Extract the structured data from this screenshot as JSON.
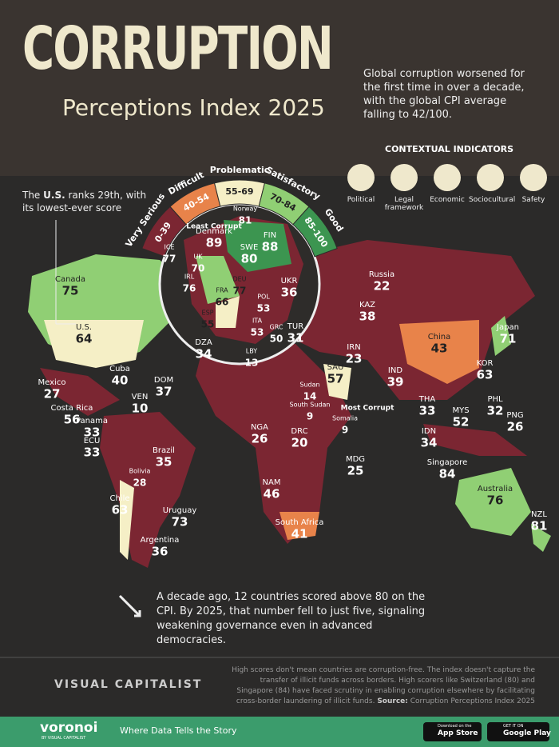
{
  "header": {
    "title": "CORRUPTION",
    "subtitle": "Perceptions Index 2025",
    "intro": "Global corruption worsened for the first time in over a decade, with the global CPI average falling to 42/100."
  },
  "indicators": {
    "title": "CONTEXTUAL INDICATORS",
    "items": [
      "Political",
      "Legal framework",
      "Economic",
      "Sociocultural",
      "Safety"
    ]
  },
  "legend": [
    {
      "name": "Very Serious",
      "range": "0-39",
      "color": "#7b2632"
    },
    {
      "name": "Difficult",
      "range": "40-54",
      "color": "#e8834a"
    },
    {
      "name": "Problematic",
      "range": "55-69",
      "color": "#f5efc6"
    },
    {
      "name": "Satisfactory",
      "range": "70-84",
      "color": "#90cf74"
    },
    {
      "name": "Good",
      "range": "85-100",
      "color": "#3c9550"
    }
  ],
  "us_note": {
    "before": "The",
    "bold": "U.S.",
    "after": "ranks 29th, with its lowest-ever score"
  },
  "annotations": {
    "least": "Least Corrupt",
    "most": "Most Corrupt"
  },
  "countries": [
    {
      "name": "Canada",
      "score": 75
    },
    {
      "name": "U.S.",
      "score": 64
    },
    {
      "name": "Mexico",
      "score": 27
    },
    {
      "name": "Cuba",
      "score": 40
    },
    {
      "name": "DOM",
      "score": 37
    },
    {
      "name": "VEN",
      "score": 10
    },
    {
      "name": "Costa Rica",
      "score": 56
    },
    {
      "name": "Panama",
      "score": 33
    },
    {
      "name": "ECU",
      "score": 33
    },
    {
      "name": "Brazil",
      "score": 35
    },
    {
      "name": "Bolivia",
      "score": 28
    },
    {
      "name": "Chile",
      "score": 63
    },
    {
      "name": "Uruguay",
      "score": 73
    },
    {
      "name": "Argentina",
      "score": 36
    },
    {
      "name": "Russia",
      "score": 22
    },
    {
      "name": "KAZ",
      "score": 38
    },
    {
      "name": "China",
      "score": 43
    },
    {
      "name": "Japan",
      "score": 71
    },
    {
      "name": "KOR",
      "score": 63
    },
    {
      "name": "IRN",
      "score": 23
    },
    {
      "name": "SAU",
      "score": 57
    },
    {
      "name": "IND",
      "score": 39
    },
    {
      "name": "THA",
      "score": 33
    },
    {
      "name": "PHL",
      "score": 32
    },
    {
      "name": "MYS",
      "score": 52
    },
    {
      "name": "PNG",
      "score": 26
    },
    {
      "name": "IDN",
      "score": 34
    },
    {
      "name": "Singapore",
      "score": 84
    },
    {
      "name": "Australia",
      "score": 76
    },
    {
      "name": "NZL",
      "score": 81
    },
    {
      "name": "Sudan",
      "score": 14
    },
    {
      "name": "South Sudan",
      "score": 9
    },
    {
      "name": "Somalia",
      "score": 9
    },
    {
      "name": "NGA",
      "score": 26
    },
    {
      "name": "DRC",
      "score": 20
    },
    {
      "name": "MDG",
      "score": 25
    },
    {
      "name": "NAM",
      "score": 46
    },
    {
      "name": "South Africa",
      "score": 41
    },
    {
      "name": "DZA",
      "score": 34
    },
    {
      "name": "LBY",
      "score": 13
    },
    {
      "name": "TUR",
      "score": 31
    },
    {
      "name": "UKR",
      "score": 36
    },
    {
      "name": "Norway",
      "score": 81
    },
    {
      "name": "Denmark",
      "score": 89
    },
    {
      "name": "FIN",
      "score": 88
    },
    {
      "name": "SWE",
      "score": 80
    },
    {
      "name": "UK",
      "score": 70
    },
    {
      "name": "IRL",
      "score": 76
    },
    {
      "name": "ICE",
      "score": 77
    },
    {
      "name": "FRA",
      "score": 66
    },
    {
      "name": "ESP",
      "score": 55
    },
    {
      "name": "DEU",
      "score": 77
    },
    {
      "name": "POL",
      "score": 53
    },
    {
      "name": "ITA",
      "score": 53
    },
    {
      "name": "GRC",
      "score": 50
    }
  ],
  "insight": "A decade ago, 12 countries scored above 80 on the CPI. By 2025, that number fell to just five, signaling weakening governance even in advanced democracies.",
  "footer": {
    "brand": "VISUAL CAPITALIST",
    "disclaimer": "High scores don't mean countries are corruption-free. The index doesn't capture the transfer of illicit funds across borders. High scorers like Switzerland (80) and Singapore (84) have faced scrutiny in enabling corruption elsewhere by facilitating cross-border laundering of illicit funds.",
    "source_label": "Source:",
    "source": "Corruption Perceptions Index 2025",
    "logo": "voronoi",
    "logo_sub": "BY VISUAL CAPITALIST",
    "tagline": "Where Data Tells the Story",
    "app_small": "Download on the",
    "app": "App Store",
    "play_small": "GET IT ON",
    "play": "Google Play"
  }
}
